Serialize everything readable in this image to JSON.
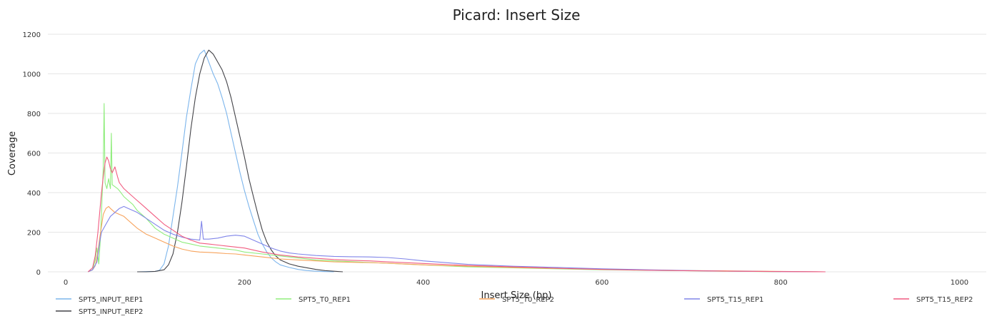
{
  "chart_data": {
    "type": "line",
    "title": "Picard: Insert Size",
    "xlabel": "Insert Size (bp)",
    "ylabel": "Coverage",
    "xlim": [
      -20,
      1030
    ],
    "ylim": [
      0,
      1200
    ],
    "x_ticks": [
      0,
      200,
      400,
      600,
      800,
      1000
    ],
    "y_ticks": [
      0,
      200,
      400,
      600,
      800,
      1000,
      1200
    ],
    "grid": "horizontal",
    "legend_position": "bottom",
    "series": [
      {
        "name": "SPT5_INPUT_REP1",
        "color": "#7cb5ec",
        "points": [
          [
            80,
            0
          ],
          [
            90,
            1
          ],
          [
            100,
            2
          ],
          [
            105,
            8
          ],
          [
            110,
            40
          ],
          [
            115,
            130
          ],
          [
            120,
            280
          ],
          [
            125,
            430
          ],
          [
            130,
            600
          ],
          [
            135,
            780
          ],
          [
            140,
            920
          ],
          [
            145,
            1050
          ],
          [
            150,
            1100
          ],
          [
            155,
            1120
          ],
          [
            160,
            1060
          ],
          [
            165,
            1000
          ],
          [
            170,
            950
          ],
          [
            175,
            880
          ],
          [
            180,
            800
          ],
          [
            185,
            700
          ],
          [
            190,
            600
          ],
          [
            195,
            500
          ],
          [
            200,
            410
          ],
          [
            205,
            330
          ],
          [
            210,
            260
          ],
          [
            215,
            190
          ],
          [
            220,
            140
          ],
          [
            225,
            100
          ],
          [
            230,
            70
          ],
          [
            235,
            50
          ],
          [
            240,
            35
          ],
          [
            250,
            22
          ],
          [
            260,
            12
          ],
          [
            270,
            6
          ],
          [
            280,
            3
          ],
          [
            290,
            1
          ],
          [
            300,
            0
          ]
        ]
      },
      {
        "name": "SPT5_INPUT_REP2",
        "color": "#434348",
        "points": [
          [
            80,
            0
          ],
          [
            90,
            0
          ],
          [
            100,
            2
          ],
          [
            110,
            10
          ],
          [
            115,
            35
          ],
          [
            120,
            90
          ],
          [
            125,
            200
          ],
          [
            130,
            350
          ],
          [
            135,
            530
          ],
          [
            140,
            720
          ],
          [
            145,
            880
          ],
          [
            150,
            1000
          ],
          [
            155,
            1080
          ],
          [
            160,
            1120
          ],
          [
            165,
            1100
          ],
          [
            170,
            1060
          ],
          [
            175,
            1020
          ],
          [
            180,
            960
          ],
          [
            185,
            880
          ],
          [
            190,
            780
          ],
          [
            195,
            680
          ],
          [
            200,
            580
          ],
          [
            205,
            470
          ],
          [
            210,
            380
          ],
          [
            215,
            290
          ],
          [
            220,
            210
          ],
          [
            225,
            150
          ],
          [
            230,
            110
          ],
          [
            235,
            80
          ],
          [
            240,
            60
          ],
          [
            250,
            40
          ],
          [
            260,
            28
          ],
          [
            270,
            20
          ],
          [
            280,
            12
          ],
          [
            290,
            6
          ],
          [
            300,
            3
          ],
          [
            310,
            0
          ]
        ]
      },
      {
        "name": "SPT5_T0_REP1",
        "color": "#90ed7d",
        "points": [
          [
            25,
            0
          ],
          [
            30,
            10
          ],
          [
            33,
            60
          ],
          [
            35,
            120
          ],
          [
            37,
            40
          ],
          [
            39,
            180
          ],
          [
            40,
            300
          ],
          [
            42,
            530
          ],
          [
            43,
            850
          ],
          [
            44,
            450
          ],
          [
            46,
            420
          ],
          [
            48,
            470
          ],
          [
            50,
            420
          ],
          [
            51,
            700
          ],
          [
            52,
            440
          ],
          [
            55,
            430
          ],
          [
            58,
            420
          ],
          [
            60,
            410
          ],
          [
            65,
            380
          ],
          [
            70,
            360
          ],
          [
            75,
            340
          ],
          [
            80,
            310
          ],
          [
            90,
            270
          ],
          [
            100,
            220
          ],
          [
            110,
            190
          ],
          [
            120,
            170
          ],
          [
            130,
            150
          ],
          [
            140,
            140
          ],
          [
            150,
            130
          ],
          [
            160,
            125
          ],
          [
            170,
            120
          ],
          [
            180,
            115
          ],
          [
            190,
            110
          ],
          [
            200,
            100
          ],
          [
            220,
            90
          ],
          [
            240,
            80
          ],
          [
            260,
            70
          ],
          [
            280,
            60
          ],
          [
            300,
            55
          ],
          [
            350,
            45
          ],
          [
            400,
            35
          ],
          [
            450,
            25
          ],
          [
            500,
            20
          ],
          [
            600,
            10
          ],
          [
            700,
            5
          ],
          [
            800,
            0
          ]
        ]
      },
      {
        "name": "SPT5_T0_REP2",
        "color": "#f7a35c",
        "points": [
          [
            25,
            0
          ],
          [
            30,
            10
          ],
          [
            33,
            30
          ],
          [
            36,
            100
          ],
          [
            38,
            170
          ],
          [
            40,
            230
          ],
          [
            42,
            290
          ],
          [
            45,
            320
          ],
          [
            48,
            330
          ],
          [
            50,
            320
          ],
          [
            55,
            300
          ],
          [
            60,
            290
          ],
          [
            65,
            280
          ],
          [
            70,
            260
          ],
          [
            75,
            240
          ],
          [
            80,
            220
          ],
          [
            90,
            190
          ],
          [
            100,
            170
          ],
          [
            110,
            150
          ],
          [
            120,
            130
          ],
          [
            130,
            115
          ],
          [
            140,
            105
          ],
          [
            150,
            100
          ],
          [
            160,
            98
          ],
          [
            170,
            95
          ],
          [
            180,
            92
          ],
          [
            190,
            90
          ],
          [
            200,
            85
          ],
          [
            220,
            75
          ],
          [
            240,
            65
          ],
          [
            260,
            60
          ],
          [
            280,
            55
          ],
          [
            300,
            50
          ],
          [
            350,
            45
          ],
          [
            400,
            35
          ],
          [
            450,
            28
          ],
          [
            500,
            22
          ],
          [
            600,
            12
          ],
          [
            700,
            6
          ],
          [
            800,
            2
          ],
          [
            850,
            0
          ]
        ]
      },
      {
        "name": "SPT5_T15_REP1",
        "color": "#8085e9",
        "points": [
          [
            25,
            0
          ],
          [
            30,
            10
          ],
          [
            35,
            50
          ],
          [
            38,
            150
          ],
          [
            40,
            200
          ],
          [
            45,
            240
          ],
          [
            50,
            280
          ],
          [
            55,
            300
          ],
          [
            60,
            320
          ],
          [
            65,
            330
          ],
          [
            70,
            320
          ],
          [
            75,
            310
          ],
          [
            80,
            300
          ],
          [
            90,
            270
          ],
          [
            100,
            240
          ],
          [
            110,
            210
          ],
          [
            120,
            190
          ],
          [
            130,
            175
          ],
          [
            140,
            165
          ],
          [
            150,
            160
          ],
          [
            152,
            255
          ],
          [
            154,
            165
          ],
          [
            160,
            165
          ],
          [
            170,
            170
          ],
          [
            180,
            180
          ],
          [
            190,
            185
          ],
          [
            200,
            180
          ],
          [
            210,
            160
          ],
          [
            220,
            140
          ],
          [
            230,
            120
          ],
          [
            240,
            105
          ],
          [
            250,
            95
          ],
          [
            260,
            90
          ],
          [
            280,
            82
          ],
          [
            300,
            78
          ],
          [
            320,
            76
          ],
          [
            340,
            75
          ],
          [
            360,
            72
          ],
          [
            380,
            65
          ],
          [
            400,
            55
          ],
          [
            450,
            38
          ],
          [
            500,
            28
          ],
          [
            550,
            22
          ],
          [
            600,
            15
          ],
          [
            650,
            10
          ],
          [
            700,
            6
          ],
          [
            750,
            3
          ],
          [
            800,
            1
          ],
          [
            850,
            0
          ]
        ]
      },
      {
        "name": "SPT5_T15_REP2",
        "color": "#f15c80",
        "points": [
          [
            25,
            0
          ],
          [
            30,
            20
          ],
          [
            33,
            80
          ],
          [
            36,
            200
          ],
          [
            38,
            300
          ],
          [
            40,
            400
          ],
          [
            42,
            480
          ],
          [
            44,
            550
          ],
          [
            46,
            580
          ],
          [
            48,
            560
          ],
          [
            50,
            520
          ],
          [
            52,
            500
          ],
          [
            55,
            530
          ],
          [
            58,
            480
          ],
          [
            60,
            450
          ],
          [
            65,
            420
          ],
          [
            70,
            400
          ],
          [
            75,
            380
          ],
          [
            80,
            360
          ],
          [
            85,
            340
          ],
          [
            90,
            320
          ],
          [
            100,
            280
          ],
          [
            110,
            240
          ],
          [
            120,
            210
          ],
          [
            130,
            180
          ],
          [
            140,
            160
          ],
          [
            150,
            145
          ],
          [
            160,
            140
          ],
          [
            170,
            135
          ],
          [
            180,
            130
          ],
          [
            190,
            125
          ],
          [
            200,
            120
          ],
          [
            220,
            100
          ],
          [
            240,
            85
          ],
          [
            260,
            75
          ],
          [
            280,
            68
          ],
          [
            300,
            62
          ],
          [
            320,
            58
          ],
          [
            340,
            55
          ],
          [
            360,
            50
          ],
          [
            400,
            42
          ],
          [
            450,
            32
          ],
          [
            500,
            25
          ],
          [
            550,
            18
          ],
          [
            600,
            12
          ],
          [
            650,
            8
          ],
          [
            700,
            5
          ],
          [
            750,
            3
          ],
          [
            800,
            1
          ],
          [
            850,
            0
          ]
        ]
      }
    ]
  }
}
